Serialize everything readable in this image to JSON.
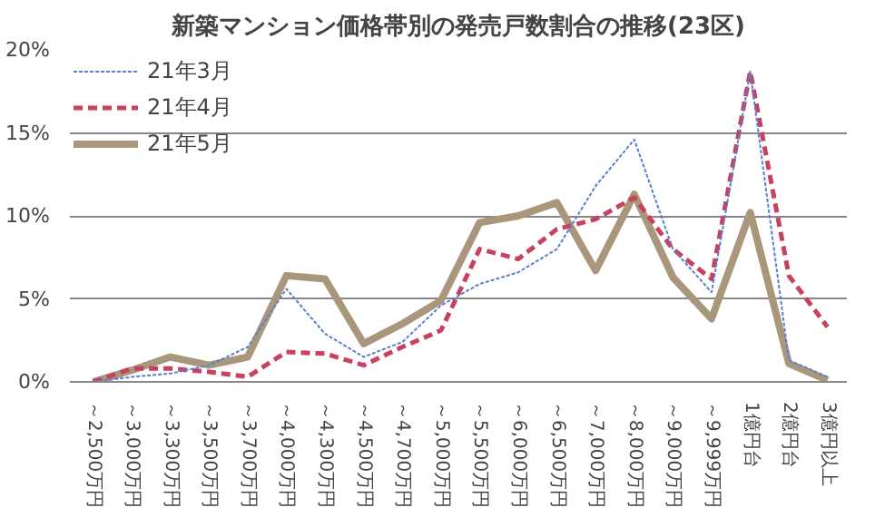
{
  "chart_data": {
    "type": "line",
    "title": "新築マンション価格帯別の発売戸数割合の推移(23区)",
    "categories": [
      "～2,500万円",
      "～3,000万円",
      "～3,300万円",
      "～3,500万円",
      "～3,700万円",
      "～4,000万円",
      "～4,300万円",
      "～4,500万円",
      "～4,700万円",
      "～5,000万円",
      "～5,500万円",
      "～6,000万円",
      "～6,500万円",
      "～7,000万円",
      "～8,000万円",
      "～9,000万円",
      "～9,999万円",
      "1億円台",
      "2億円台",
      "3億円以上"
    ],
    "series": [
      {
        "name": "21年3月",
        "color": "#5a7fd0",
        "line_style": "dotted",
        "values": [
          0,
          0.3,
          0.5,
          1.0,
          2.1,
          5.6,
          2.9,
          1.5,
          2.4,
          4.6,
          5.9,
          6.6,
          8.0,
          11.8,
          14.6,
          8.0,
          5.4,
          18.7,
          1.3,
          0.3
        ]
      },
      {
        "name": "21年4月",
        "color": "#c8415e",
        "line_style": "dashed",
        "values": [
          0,
          0.8,
          0.8,
          0.6,
          0.3,
          1.8,
          1.7,
          1.0,
          2.1,
          3.1,
          8.0,
          7.4,
          9.2,
          9.8,
          11.1,
          8.0,
          6.2,
          18.7,
          6.4,
          3.3
        ]
      },
      {
        "name": "21年5月",
        "color": "#a8977a",
        "line_style": "solid",
        "values": [
          0,
          0.7,
          1.5,
          1.0,
          1.5,
          6.4,
          6.2,
          2.3,
          3.5,
          4.9,
          9.6,
          10.0,
          10.8,
          6.7,
          11.3,
          6.3,
          3.8,
          10.2,
          1.1,
          0.1
        ]
      }
    ],
    "ylim": [
      0,
      20
    ],
    "yticks": [
      {
        "value": 0,
        "label": "0%"
      },
      {
        "value": 5,
        "label": "5%"
      },
      {
        "value": 10,
        "label": "10%"
      },
      {
        "value": 15,
        "label": "15%"
      },
      {
        "value": 20,
        "label": "20%"
      }
    ],
    "grid": "y",
    "legend": "top left",
    "marker": "none"
  }
}
